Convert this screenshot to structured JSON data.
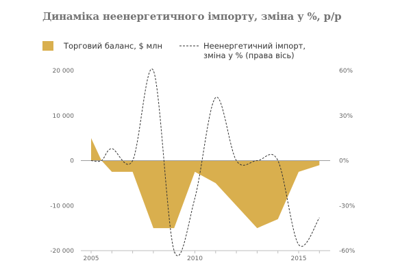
{
  "title": "Динаміка неенергетичного імпорту, зміна у %, р/р",
  "colors": {
    "area": "#d9af4e",
    "line": "#333333",
    "axis": "#bdbdbd"
  },
  "legend": {
    "area_label": "Торговий баланс, $ млн",
    "line_label": "Неенергетичний імпорт, зміна у % (права вісь)"
  },
  "chart_data": {
    "type": "area",
    "xlim": [
      2005,
      2016.2
    ],
    "x_ticks": [
      {
        "value": 2005,
        "label": "2005"
      },
      {
        "value": 2010,
        "label": "2010"
      },
      {
        "value": 2015,
        "label": "2015"
      }
    ],
    "ylim_left": [
      -20000,
      20000
    ],
    "y_ticks_left": [
      {
        "value": 20000,
        "label": "20 000"
      },
      {
        "value": 10000,
        "label": "10 000"
      },
      {
        "value": 0,
        "label": "0"
      },
      {
        "value": -10000,
        "label": "-10 000"
      },
      {
        "value": -20000,
        "label": "-20 000"
      }
    ],
    "ylim_right": [
      -60,
      60
    ],
    "y_ticks_right": [
      {
        "value": 60,
        "label": "60%"
      },
      {
        "value": 30,
        "label": "30%"
      },
      {
        "value": 0,
        "label": "0%"
      },
      {
        "value": -30,
        "label": "-30%"
      },
      {
        "value": -60,
        "label": "-60%"
      }
    ],
    "series": [
      {
        "name": "Торговий баланс, $ млн",
        "type": "area",
        "axis": "left",
        "points": [
          [
            2005,
            5000
          ],
          [
            2005.5,
            0
          ],
          [
            2006,
            -2500
          ],
          [
            2007,
            -2500
          ],
          [
            2008,
            -15000
          ],
          [
            2009,
            -15000
          ],
          [
            2010,
            -2500
          ],
          [
            2011,
            -5000
          ],
          [
            2013,
            -15000
          ],
          [
            2014,
            -13000
          ],
          [
            2015,
            -2500
          ],
          [
            2016,
            -1000
          ]
        ]
      },
      {
        "name": "Неенергетичний імпорт, зміна у % (права вісь)",
        "type": "line",
        "axis": "right",
        "points": [
          [
            2005,
            0
          ],
          [
            2005.5,
            0
          ],
          [
            2006,
            8
          ],
          [
            2007,
            0
          ],
          [
            2008,
            60
          ],
          [
            2009,
            -60
          ],
          [
            2010,
            -25
          ],
          [
            2011,
            42
          ],
          [
            2012,
            0
          ],
          [
            2013,
            0
          ],
          [
            2014,
            0
          ],
          [
            2015,
            -56
          ],
          [
            2016,
            -38
          ]
        ]
      }
    ]
  }
}
